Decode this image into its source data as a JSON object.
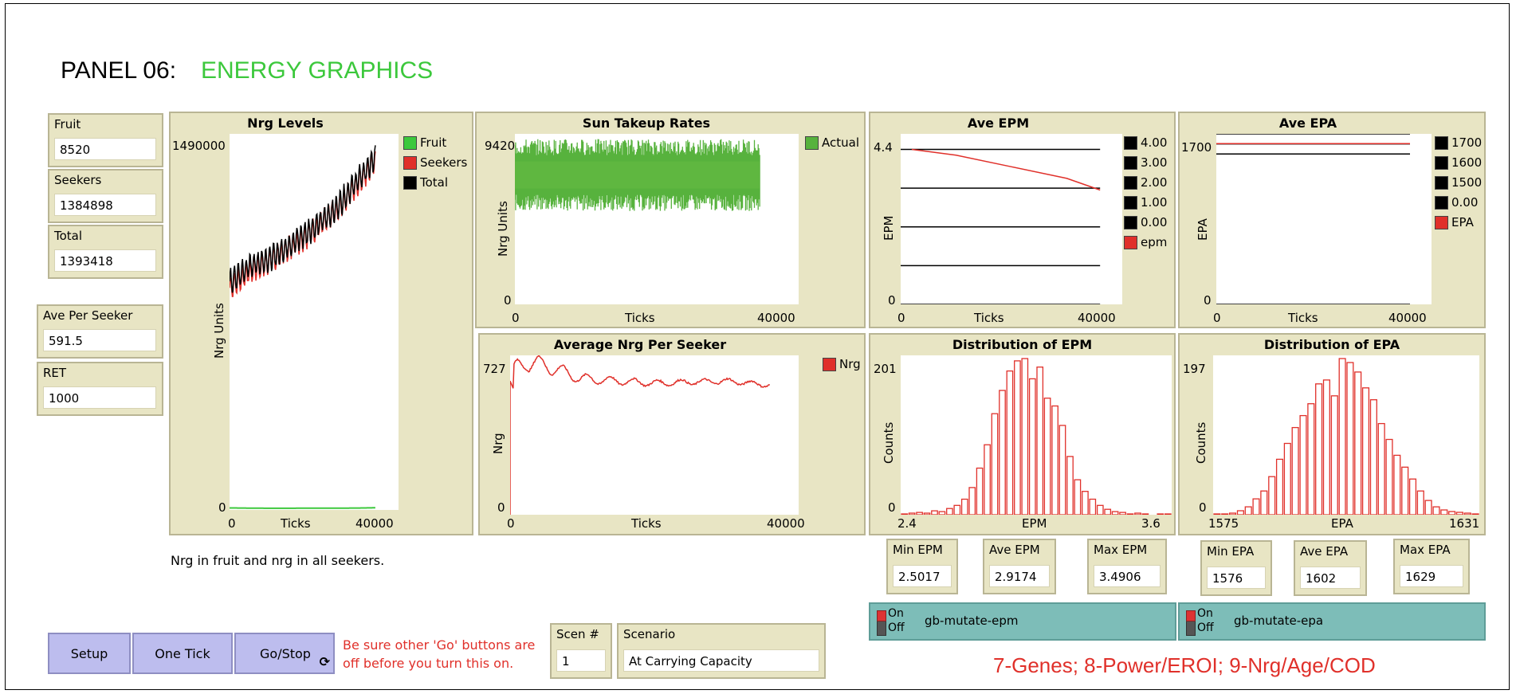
{
  "panel": {
    "label": "PANEL 06:",
    "name": "ENERGY GRAPHICS"
  },
  "monitors": [
    {
      "label": "Fruit",
      "value": "8520"
    },
    {
      "label": "Seekers",
      "value": "1384898"
    },
    {
      "label": "Total",
      "value": "1393418"
    },
    {
      "label": "Ave Per Seeker",
      "value": "591.5"
    },
    {
      "label": "RET",
      "value": "1000"
    }
  ],
  "plots": {
    "nrg_levels": {
      "title": "Nrg Levels",
      "ymax": "1490000",
      "ymin": "0",
      "xmin": "0",
      "xmax": "40000",
      "xlabel": "Ticks",
      "ylabel": "Nrg Units",
      "legend": [
        {
          "name": "Fruit",
          "color": "#3cc83c"
        },
        {
          "name": "Seekers",
          "color": "#e0302a"
        },
        {
          "name": "Total",
          "color": "#000000"
        }
      ]
    },
    "sun_takeup": {
      "title": "Sun Takeup Rates",
      "ymax": "9420",
      "ymin": "0",
      "xmin": "0",
      "xmax": "40000",
      "xlabel": "Ticks",
      "ylabel": "Nrg Units",
      "legend": [
        {
          "name": "Actual",
          "color": "#57b23d"
        }
      ]
    },
    "ave_nrg": {
      "title": "Average Nrg Per Seeker",
      "ymax": "727",
      "ymin": "0",
      "xmin": "0",
      "xmax": "40000",
      "xlabel": "Ticks",
      "ylabel": "Nrg",
      "legend": [
        {
          "name": "Nrg",
          "color": "#e0302a"
        }
      ]
    },
    "ave_epm": {
      "title": "Ave EPM",
      "ymax": "4.4",
      "ymin": "0",
      "xmin": "0",
      "xmax": "40000",
      "xlabel": "Ticks",
      "ylabel": "EPM",
      "legend": [
        {
          "name": "4.00",
          "color": "#000000"
        },
        {
          "name": "3.00",
          "color": "#000000"
        },
        {
          "name": "2.00",
          "color": "#000000"
        },
        {
          "name": "1.00",
          "color": "#000000"
        },
        {
          "name": "0.00",
          "color": "#000000"
        },
        {
          "name": "epm",
          "color": "#e0302a"
        }
      ]
    },
    "ave_epa": {
      "title": "Ave EPA",
      "ymax": "1700",
      "ymin": "0",
      "xmin": "0",
      "xmax": "40000",
      "xlabel": "Ticks",
      "ylabel": "EPA",
      "legend": [
        {
          "name": "1700",
          "color": "#000000"
        },
        {
          "name": "1600",
          "color": "#000000"
        },
        {
          "name": "1500",
          "color": "#000000"
        },
        {
          "name": "0.00",
          "color": "#000000"
        },
        {
          "name": "EPA",
          "color": "#e0302a"
        }
      ]
    },
    "dist_epm": {
      "title": "Distribution of EPM",
      "ymax": "201",
      "ymin": "0",
      "xmin": "2.4",
      "xmax": "3.6",
      "xlabel": "EPM",
      "ylabel": "Counts"
    },
    "dist_epa": {
      "title": "Distribution of EPA",
      "ymax": "197",
      "ymin": "0",
      "xmin": "1575",
      "xmax": "1631",
      "xlabel": "EPA",
      "ylabel": "Counts"
    }
  },
  "stats": [
    {
      "label": "Min EPM",
      "value": "2.5017"
    },
    {
      "label": "Ave EPM",
      "value": "2.9174"
    },
    {
      "label": "Max EPM",
      "value": "3.4906"
    },
    {
      "label": "Min EPA",
      "value": "1576"
    },
    {
      "label": "Ave EPA",
      "value": "1602"
    },
    {
      "label": "Max EPA",
      "value": "1629"
    }
  ],
  "switches": [
    {
      "on": "On",
      "off": "Off",
      "label": "gb-mutate-epm"
    },
    {
      "on": "On",
      "off": "Off",
      "label": "gb-mutate-epa"
    }
  ],
  "note": "Nrg in fruit and  nrg in all seekers.",
  "buttons": {
    "setup": "Setup",
    "one_tick": "One Tick",
    "go_stop": "Go/Stop"
  },
  "warning": {
    "line1": "Be sure other 'Go' buttons are",
    "line2": "off before you turn this on."
  },
  "scenario_num": {
    "label": "Scen #",
    "value": "1"
  },
  "scenario": {
    "label": "Scenario",
    "value": "At Carrying Capacity"
  },
  "footer": "7-Genes; 8-Power/EROI; 9-Nrg/Age/COD",
  "colors": {
    "green": "#3cc83c",
    "red": "#e0302a",
    "tan": "#e8e5c4",
    "button": "#bdbdee",
    "switch": "#7dbdb8"
  },
  "chart_data": [
    {
      "type": "line",
      "title": "Nrg Levels",
      "x_range": [
        0,
        40000
      ],
      "ylim": [
        0,
        1490000
      ],
      "series": [
        {
          "name": "Fruit",
          "x": [
            0,
            10000,
            20000,
            30000,
            34500
          ],
          "values": [
            8000,
            6500,
            7000,
            7500,
            8520
          ]
        },
        {
          "name": "Seekers",
          "x": [
            0,
            5000,
            10000,
            15000,
            20000,
            25000,
            30000,
            33000,
            34500
          ],
          "values": [
            880000,
            950000,
            990000,
            1050000,
            1110000,
            1180000,
            1290000,
            1350000,
            1384898
          ]
        },
        {
          "name": "Total",
          "x": [
            0,
            5000,
            10000,
            15000,
            20000,
            25000,
            30000,
            33000,
            34500
          ],
          "values": [
            900000,
            970000,
            1000000,
            1060000,
            1120000,
            1190000,
            1300000,
            1360000,
            1393418
          ]
        }
      ]
    },
    {
      "type": "area",
      "title": "Sun Takeup Rates",
      "x_range": [
        0,
        40000
      ],
      "ylim": [
        0,
        9420
      ],
      "series": [
        {
          "name": "Actual",
          "band_low": 5700,
          "band_high": 8600
        }
      ]
    },
    {
      "type": "line",
      "title": "Average Nrg Per Seeker",
      "x_range": [
        0,
        40000
      ],
      "ylim": [
        0,
        727
      ],
      "series": [
        {
          "name": "Nrg",
          "x": [
            0,
            500,
            2000,
            5000,
            10000,
            20000,
            30000,
            36000
          ],
          "values": [
            0,
            640,
            700,
            680,
            620,
            600,
            610,
            591.5
          ]
        }
      ]
    },
    {
      "type": "line",
      "title": "Ave EPM",
      "x_range": [
        0,
        40000
      ],
      "ylim": [
        0,
        4.4
      ],
      "series": [
        {
          "name": "4.00",
          "x": [
            0,
            36000
          ],
          "values": [
            4,
            4
          ]
        },
        {
          "name": "3.00",
          "x": [
            0,
            36000
          ],
          "values": [
            3,
            3
          ]
        },
        {
          "name": "2.00",
          "x": [
            0,
            36000
          ],
          "values": [
            2,
            2
          ]
        },
        {
          "name": "1.00",
          "x": [
            0,
            36000
          ],
          "values": [
            1,
            1
          ]
        },
        {
          "name": "0.00",
          "x": [
            0,
            36000
          ],
          "values": [
            0,
            0
          ]
        },
        {
          "name": "epm",
          "x": [
            2000,
            10000,
            20000,
            30000,
            36000
          ],
          "values": [
            4.0,
            3.85,
            3.55,
            3.25,
            2.95
          ]
        }
      ]
    },
    {
      "type": "line",
      "title": "Ave EPA",
      "x_range": [
        0,
        40000
      ],
      "ylim": [
        0,
        1700
      ],
      "series": [
        {
          "name": "1700",
          "x": [
            0,
            36000
          ],
          "values": [
            1700,
            1700
          ]
        },
        {
          "name": "1600",
          "x": [
            0,
            36000
          ],
          "values": [
            1600,
            1600
          ]
        },
        {
          "name": "1500",
          "x": [
            0,
            36000
          ],
          "values": [
            1500,
            1500
          ]
        },
        {
          "name": "0.00",
          "x": [
            0,
            36000
          ],
          "values": [
            0,
            0
          ]
        },
        {
          "name": "EPA",
          "x": [
            0,
            36000
          ],
          "values": [
            1602,
            1602
          ]
        }
      ]
    },
    {
      "type": "bar",
      "title": "Distribution of EPM",
      "x_range": [
        2.4,
        3.6
      ],
      "ylim": [
        0,
        201
      ],
      "values": [
        1,
        2,
        3,
        2,
        5,
        4,
        8,
        12,
        20,
        35,
        60,
        90,
        130,
        160,
        185,
        198,
        201,
        175,
        190,
        150,
        140,
        115,
        75,
        45,
        30,
        20,
        12,
        7,
        4,
        3,
        1,
        2,
        1,
        0,
        1,
        1
      ]
    },
    {
      "type": "bar",
      "title": "Distribution of EPA",
      "x_range": [
        1575,
        1631
      ],
      "ylim": [
        0,
        197
      ],
      "values": [
        1,
        1,
        2,
        5,
        10,
        20,
        30,
        48,
        70,
        90,
        110,
        125,
        140,
        165,
        170,
        150,
        197,
        192,
        180,
        160,
        145,
        115,
        95,
        75,
        60,
        45,
        30,
        18,
        10,
        6,
        4,
        3,
        2,
        1
      ]
    }
  ]
}
